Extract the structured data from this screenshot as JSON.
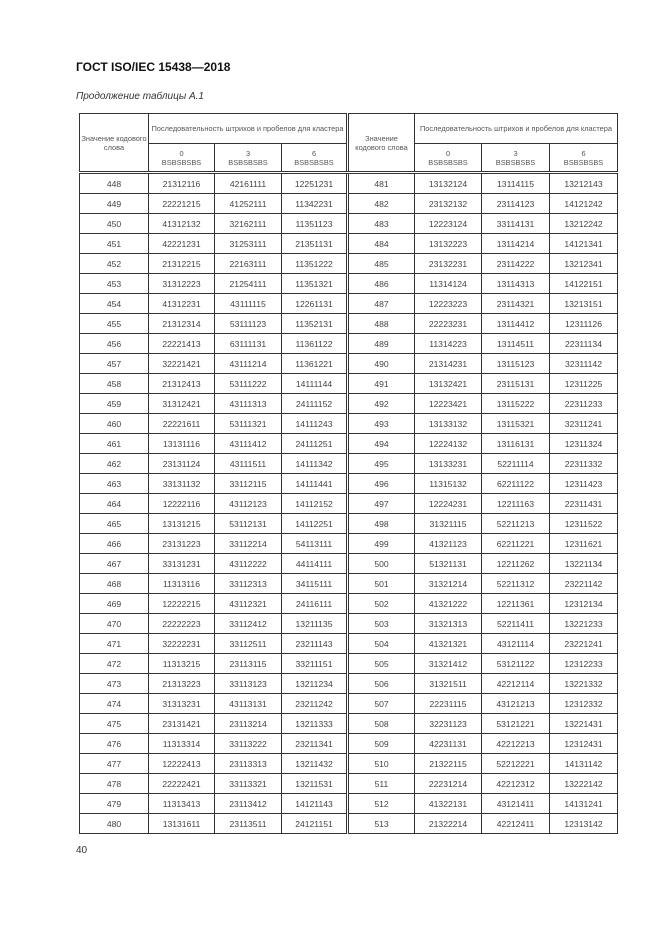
{
  "header": {
    "title": "ГОСТ ISO/IEC 15438—2018"
  },
  "caption": "Продолжение таблицы А.1",
  "table": {
    "col_codeword": "Значение кодового слова",
    "col_sequence": "Последовательность штрихов и пробелов для кластера",
    "clusters": [
      {
        "number": "0",
        "pattern": "BSBSBSBS"
      },
      {
        "number": "3",
        "pattern": "BSBSBSBS"
      },
      {
        "number": "6",
        "pattern": "BSBSBSBS"
      }
    ],
    "left_rows": [
      [
        "448",
        "21312116",
        "42161111",
        "12251231"
      ],
      [
        "449",
        "22221215",
        "41252111",
        "11342231"
      ],
      [
        "450",
        "41312132",
        "32162111",
        "11351123"
      ],
      [
        "451",
        "42221231",
        "31253111",
        "21351131"
      ],
      [
        "452",
        "21312215",
        "22163111",
        "11351222"
      ],
      [
        "453",
        "31312223",
        "21254111",
        "11351321"
      ],
      [
        "454",
        "41312231",
        "43111115",
        "12261131"
      ],
      [
        "455",
        "21312314",
        "53111123",
        "11352131"
      ],
      [
        "456",
        "22221413",
        "63111131",
        "11361122"
      ],
      [
        "457",
        "32221421",
        "43111214",
        "11361221"
      ],
      [
        "458",
        "21312413",
        "53111222",
        "14111144"
      ],
      [
        "459",
        "31312421",
        "43111313",
        "24111152"
      ],
      [
        "460",
        "22221611",
        "53111321",
        "14111243"
      ],
      [
        "461",
        "13131116",
        "43111412",
        "24111251"
      ],
      [
        "462",
        "23131124",
        "43111511",
        "14111342"
      ],
      [
        "463",
        "33131132",
        "33112115",
        "14111441"
      ],
      [
        "464",
        "12222116",
        "43112123",
        "14112152"
      ],
      [
        "465",
        "13131215",
        "53112131",
        "14112251"
      ],
      [
        "466",
        "23131223",
        "33112214",
        "54113111"
      ],
      [
        "467",
        "33131231",
        "43112222",
        "44114111"
      ],
      [
        "468",
        "11313116",
        "33112313",
        "34115111"
      ],
      [
        "469",
        "12222215",
        "43112321",
        "24116111"
      ],
      [
        "470",
        "22222223",
        "33112412",
        "13211135"
      ],
      [
        "471",
        "32222231",
        "33112511",
        "23211143"
      ],
      [
        "472",
        "11313215",
        "23113115",
        "33211151"
      ],
      [
        "473",
        "21313223",
        "33113123",
        "13211234"
      ],
      [
        "474",
        "31313231",
        "43113131",
        "23211242"
      ],
      [
        "475",
        "23131421",
        "23113214",
        "13211333"
      ],
      [
        "476",
        "11313314",
        "33113222",
        "23211341"
      ],
      [
        "477",
        "12222413",
        "23113313",
        "13211432"
      ],
      [
        "478",
        "22222421",
        "33113321",
        "13211531"
      ],
      [
        "479",
        "11313413",
        "23113412",
        "14121143"
      ],
      [
        "480",
        "13131611",
        "23113511",
        "24121151"
      ]
    ],
    "right_rows": [
      [
        "481",
        "13132124",
        "13114115",
        "13212143"
      ],
      [
        "482",
        "23132132",
        "23114123",
        "14121242"
      ],
      [
        "483",
        "12223124",
        "33114131",
        "13212242"
      ],
      [
        "484",
        "13132223",
        "13114214",
        "14121341"
      ],
      [
        "485",
        "23132231",
        "23114222",
        "13212341"
      ],
      [
        "486",
        "11314124",
        "13114313",
        "14122151"
      ],
      [
        "487",
        "12223223",
        "23114321",
        "13213151"
      ],
      [
        "488",
        "22223231",
        "13114412",
        "12311126"
      ],
      [
        "489",
        "11314223",
        "13114511",
        "22311134"
      ],
      [
        "490",
        "21314231",
        "13115123",
        "32311142"
      ],
      [
        "491",
        "13132421",
        "23115131",
        "12311225"
      ],
      [
        "492",
        "12223421",
        "13115222",
        "22311233"
      ],
      [
        "493",
        "13133132",
        "13115321",
        "32311241"
      ],
      [
        "494",
        "12224132",
        "13116131",
        "12311324"
      ],
      [
        "495",
        "13133231",
        "52211114",
        "22311332"
      ],
      [
        "496",
        "11315132",
        "62211122",
        "12311423"
      ],
      [
        "497",
        "12224231",
        "12211163",
        "22311431"
      ],
      [
        "498",
        "31321115",
        "52211213",
        "12311522"
      ],
      [
        "499",
        "41321123",
        "62211221",
        "12311621"
      ],
      [
        "500",
        "51321131",
        "12211262",
        "13221134"
      ],
      [
        "501",
        "31321214",
        "52211312",
        "23221142"
      ],
      [
        "502",
        "41321222",
        "12211361",
        "12312134"
      ],
      [
        "503",
        "31321313",
        "52211411",
        "13221233"
      ],
      [
        "504",
        "41321321",
        "43121114",
        "23221241"
      ],
      [
        "505",
        "31321412",
        "53121122",
        "12312233"
      ],
      [
        "506",
        "31321511",
        "42212114",
        "13221332"
      ],
      [
        "507",
        "22231115",
        "43121213",
        "12312332"
      ],
      [
        "508",
        "32231123",
        "53121221",
        "13221431"
      ],
      [
        "509",
        "42231131",
        "42212213",
        "12312431"
      ],
      [
        "510",
        "21322115",
        "52212221",
        "14131142"
      ],
      [
        "511",
        "22231214",
        "42212312",
        "13222142"
      ],
      [
        "512",
        "41322131",
        "43121411",
        "14131241"
      ],
      [
        "513",
        "21322214",
        "42212411",
        "12313142"
      ]
    ]
  },
  "footer": {
    "page_number": "40"
  }
}
